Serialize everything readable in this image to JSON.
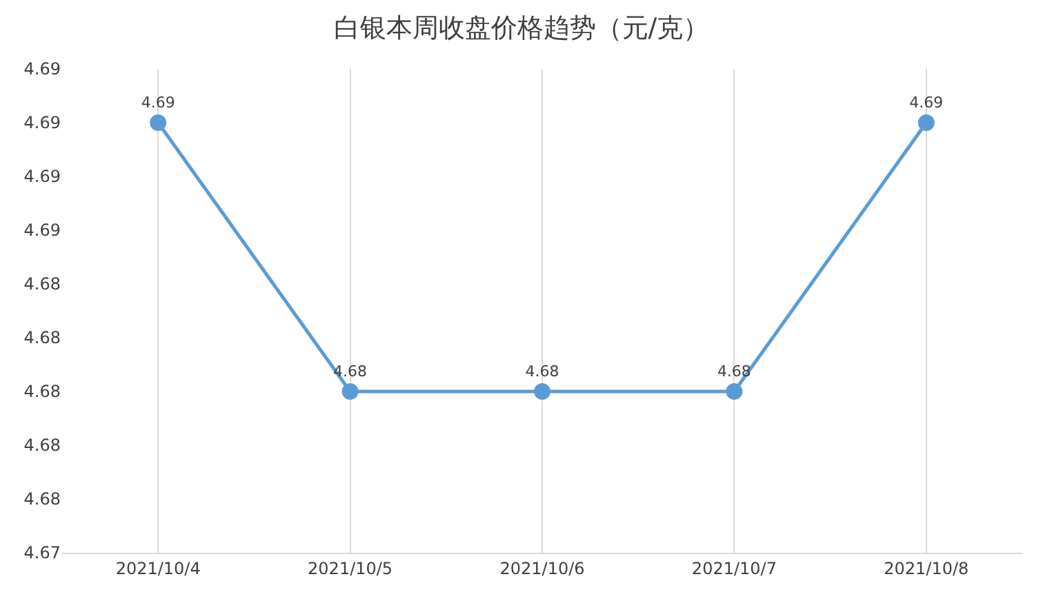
{
  "chart_data": {
    "type": "line",
    "title": "白银本周收盘价格趋势（元/克）",
    "categories": [
      "2021/10/4",
      "2021/10/5",
      "2021/10/6",
      "2021/10/7",
      "2021/10/8"
    ],
    "series": [
      {
        "color": "#5b9bd5",
        "values": [
          4.69,
          4.68,
          4.68,
          4.68,
          4.69
        ]
      }
    ],
    "ylim": [
      4.674,
      4.692
    ],
    "yticks": [
      {
        "value": 4.674,
        "label": "4.67"
      },
      {
        "value": 4.676,
        "label": "4.68"
      },
      {
        "value": 4.678,
        "label": "4.68"
      },
      {
        "value": 4.68,
        "label": "4.68"
      },
      {
        "value": 4.682,
        "label": "4.68"
      },
      {
        "value": 4.684,
        "label": "4.68"
      },
      {
        "value": 4.686,
        "label": "4.69"
      },
      {
        "value": 4.688,
        "label": "4.69"
      },
      {
        "value": 4.69,
        "label": "4.69"
      },
      {
        "value": 4.692,
        "label": "4.69"
      }
    ],
    "data_labels": true,
    "grid": "x",
    "marker": "circle",
    "line_style": "solid"
  }
}
